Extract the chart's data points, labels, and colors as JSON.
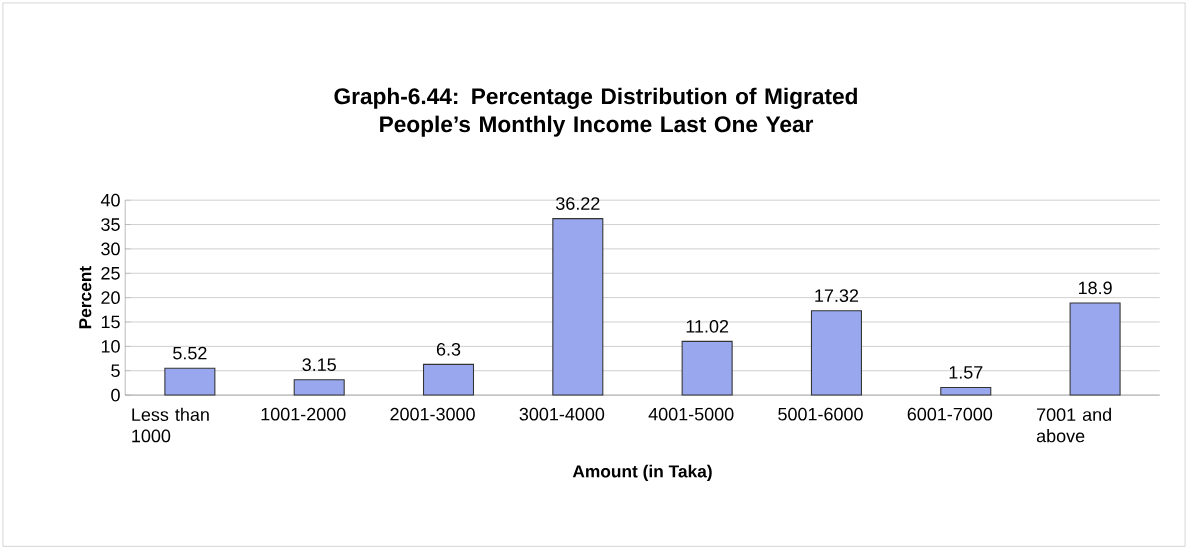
{
  "chart_data": {
    "type": "bar",
    "title": "Graph-6.44: Percentage Distribution of Migrated People’s Monthly Income Last One Year",
    "xlabel": "Amount (in Taka)",
    "ylabel": "Percent",
    "categories": [
      "Less than 1000",
      "1001-2000",
      "2001-3000",
      "3001-4000",
      "4001-5000",
      "5001-6000",
      "6001-7000",
      "7001 and above"
    ],
    "values": [
      5.52,
      3.15,
      6.3,
      36.22,
      11.02,
      17.32,
      1.57,
      18.9
    ],
    "color": "#99a8ee",
    "ylim": [
      0,
      40
    ],
    "yticks": [
      0,
      5,
      10,
      15,
      20,
      25,
      30,
      35,
      40
    ],
    "grid": "y",
    "data_labels": true
  }
}
